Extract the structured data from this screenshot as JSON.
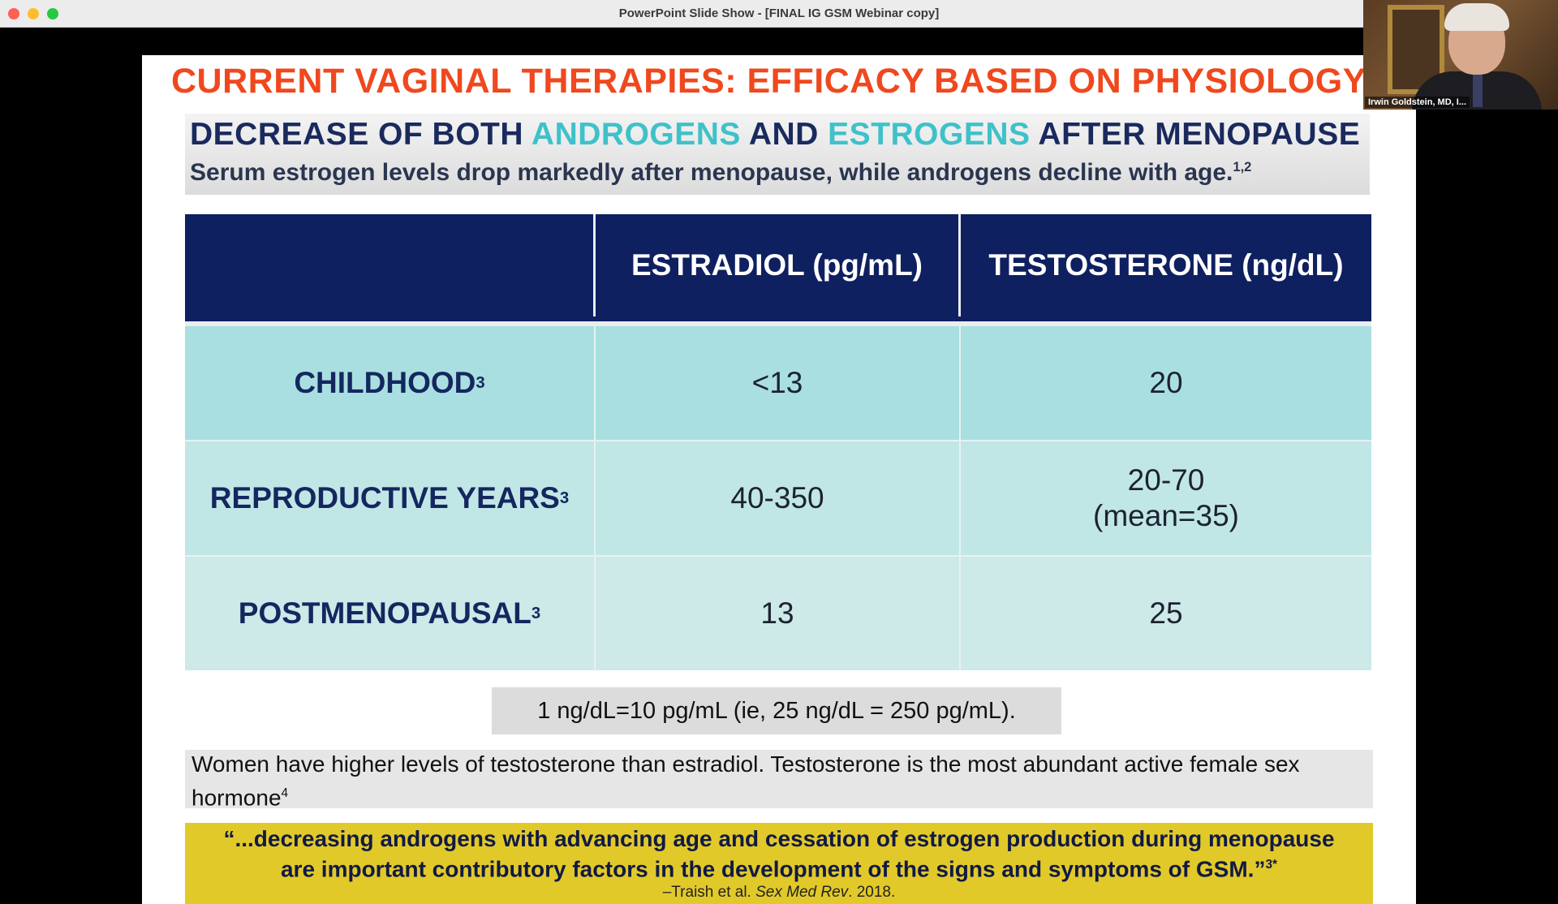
{
  "window": {
    "title": "PowerPoint Slide Show - [FINAL IG GSM Webinar copy]"
  },
  "slide": {
    "title": "CURRENT VAGINAL THERAPIES: EFFICACY BASED ON PHYSIOLOGY",
    "banner": {
      "heading_part1": "DECREASE OF BOTH ",
      "heading_androgens": "ANDROGENS",
      "heading_part2": " AND ",
      "heading_estrogens": "ESTROGENS",
      "heading_part3": " AFTER MENOPAUSE",
      "subheading": "Serum estrogen levels drop markedly after menopause, while androgens decline with age.",
      "subheading_sup": "1,2"
    },
    "table": {
      "columns": [
        "",
        "ESTRADIOL (pg/mL)",
        "TESTOSTERONE (ng/dL)"
      ],
      "rows": [
        {
          "label": "CHILDHOOD",
          "sup": "3",
          "estradiol": "<13",
          "testosterone": "20",
          "testosterone_note": ""
        },
        {
          "label": "REPRODUCTIVE YEARS",
          "sup": "3",
          "estradiol": "40-350",
          "testosterone": "20-70",
          "testosterone_note": "(mean=35)"
        },
        {
          "label": "POSTMENOPAUSAL",
          "sup": "3",
          "estradiol": "13",
          "testosterone": "25",
          "testosterone_note": ""
        }
      ]
    },
    "conversion_note": "1 ng/dL=10 pg/mL (ie, 25 ng/dL = 250 pg/mL).",
    "info_text": "Women have higher levels of testosterone than estradiol. Testosterone is the most abundant active female sex hormone",
    "info_sup": "4",
    "quote": {
      "line1": "“...decreasing androgens with advancing age and cessation of estrogen production during menopause",
      "line2": "are important contributory factors in the development of the signs and symptoms of GSM.”",
      "line2_sup": "3*",
      "citation_prefix": "–Traish et al. ",
      "citation_journal": "Sex Med Rev",
      "citation_suffix": ". 2018."
    }
  },
  "webcam": {
    "participant_name": "Irwin Goldstein, MD, I..."
  },
  "colors": {
    "title_red": "#f0481e",
    "navy": "#0f2060",
    "teal_accent": "#3fc1c9",
    "quote_yellow": "#e2c92a"
  }
}
